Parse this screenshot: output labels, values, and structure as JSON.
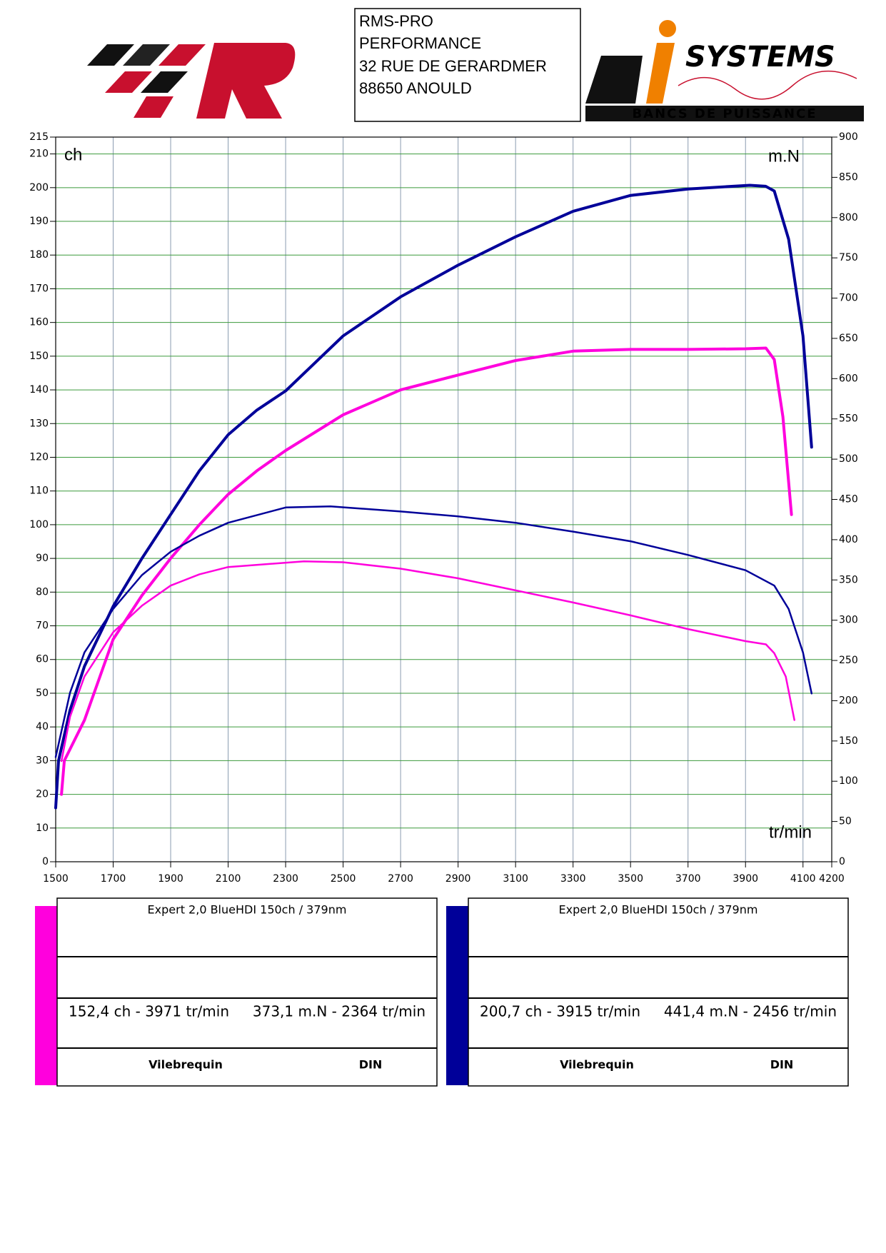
{
  "header": {
    "lines": [
      "RMS-PRO",
      "PERFORMANCE",
      "32 RUE DE GERARDMER",
      "88650 ANOULD"
    ]
  },
  "logo_right": {
    "text": "SYSTEMS",
    "subtitle": "BANCS DE PUISSANCE"
  },
  "chart_data": {
    "type": "line",
    "y_label": "ch",
    "y2_label": "m.N",
    "x_label": "tr/min",
    "xlim": [
      1500,
      4200
    ],
    "xticks": [
      1500,
      1700,
      1900,
      2100,
      2300,
      2500,
      2700,
      2900,
      3100,
      3300,
      3500,
      3700,
      3900,
      4100,
      4200
    ],
    "ylim": [
      0,
      215
    ],
    "yticks": [
      0,
      10,
      20,
      30,
      40,
      50,
      60,
      70,
      80,
      90,
      100,
      110,
      120,
      130,
      140,
      150,
      160,
      170,
      180,
      190,
      200,
      210,
      215
    ],
    "y2lim": [
      0,
      900
    ],
    "y2ticks": [
      0,
      50,
      100,
      150,
      200,
      250,
      300,
      350,
      400,
      450,
      500,
      550,
      600,
      650,
      700,
      750,
      800,
      850,
      900
    ],
    "grid": true,
    "series": [
      {
        "color": "#000099",
        "x": [
          1500,
          1510,
          1550,
          1600,
          1700,
          1800,
          1900,
          2000,
          2100,
          2200,
          2300,
          2500,
          2700,
          2900,
          3100,
          3300,
          3500,
          3700,
          3915,
          3970,
          4000,
          4050,
          4100,
          4130
        ],
        "values": [
          16,
          30,
          45,
          58,
          75.8,
          90,
          103,
          116,
          126.7,
          134,
          139.7,
          156,
          167.6,
          177,
          185.4,
          193,
          197.7,
          199.6,
          200.7,
          200.4,
          199,
          184.7,
          156,
          123
        ]
      },
      {
        "color": "#ff00dd",
        "x": [
          1520,
          1530,
          1600,
          1700,
          1800,
          1900,
          2000,
          2100,
          2200,
          2300,
          2500,
          2700,
          2900,
          3100,
          3300,
          3500,
          3700,
          3900,
          3971,
          4000,
          4030,
          4060
        ],
        "values": [
          20,
          30,
          42,
          66,
          79,
          90,
          100,
          109,
          116,
          122,
          132.6,
          140,
          144.4,
          148.7,
          151.5,
          152,
          152,
          152.2,
          152.4,
          149,
          132,
          103
        ]
      },
      {
        "color": "#000099",
        "axis": "y2",
        "x": [
          1500,
          1550,
          1600,
          1700,
          1800,
          1900,
          2000,
          2100,
          2300,
          2456,
          2700,
          2900,
          3100,
          3300,
          3500,
          3700,
          3900,
          4000,
          4050,
          4100,
          4130
        ],
        "values": [
          130,
          210,
          260,
          314,
          356,
          385,
          405,
          421,
          440,
          441.4,
          435,
          429,
          421,
          410,
          398,
          381,
          362,
          343,
          314,
          260,
          209
        ]
      },
      {
        "color": "#ff00dd",
        "axis": "y2",
        "x": [
          1520,
          1550,
          1600,
          1700,
          1800,
          1900,
          2000,
          2100,
          2364,
          2500,
          2700,
          2900,
          3100,
          3300,
          3500,
          3700,
          3900,
          3971,
          4000,
          4040,
          4070
        ],
        "values": [
          125,
          180,
          230,
          285,
          318,
          343,
          357,
          366,
          373.1,
          372,
          364,
          352,
          337,
          322,
          306,
          289,
          274,
          270,
          259,
          230,
          176
        ]
      }
    ]
  },
  "legends": [
    {
      "color": "#ff00dd",
      "title": "Expert 2,0 BlueHDI 150ch / 379nm",
      "power": "152,4 ch - 3971 tr/min",
      "torque": "373,1 m.N - 2364 tr/min",
      "mode": "Vilebrequin",
      "norm": "DIN"
    },
    {
      "color": "#000099",
      "title": "Expert 2,0 BlueHDI 150ch / 379nm",
      "power": "200,7 ch - 3915 tr/min",
      "torque": "441,4 m.N - 2456 tr/min",
      "mode": "Vilebrequin",
      "norm": "DIN"
    }
  ]
}
